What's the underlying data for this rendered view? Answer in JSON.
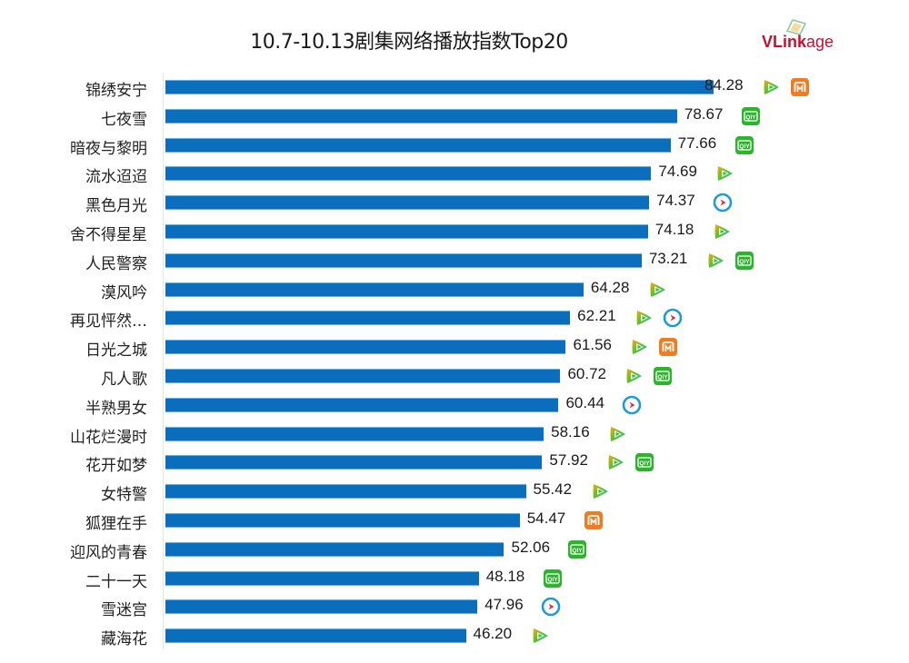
{
  "header": {
    "title": "10.7-10.13剧集网络播放指数Top20",
    "logo": {
      "text_v": "VL",
      "text_ink": "ink",
      "text_age": "age",
      "full": "VLinkage"
    }
  },
  "colors": {
    "bar": "#0a6ebd",
    "bar_edge": "#5fb2e6",
    "tencent_video": [
      "#f5a623",
      "#2ab7ec",
      "#58c322"
    ],
    "iqiyi": "#2bb52b",
    "mango_tv": "#f07c22",
    "youku": "#1e9bd7"
  },
  "icons_legend": {
    "tencent-video-icon": "腾讯视频",
    "iqiyi-icon": "爱奇艺",
    "mango-tv-icon": "芒果TV",
    "youku-icon": "优酷"
  },
  "chart_data": {
    "type": "bar",
    "orientation": "horizontal",
    "title": "10.7-10.13剧集网络播放指数Top20",
    "xlabel": "",
    "ylabel": "",
    "grid": false,
    "legend": null,
    "xlim": [
      0,
      90
    ],
    "categories": [
      "锦绣安宁",
      "七夜雪",
      "暗夜与黎明",
      "流水迢迢",
      "黑色月光",
      "舍不得星星",
      "人民警察",
      "漠风吟",
      "再见怦然…",
      "日光之城",
      "凡人歌",
      "半熟男女",
      "山花烂漫时",
      "花开如梦",
      "女特警",
      "狐狸在手",
      "迎风的青春",
      "二十一天",
      "雪迷宫",
      "藏海花"
    ],
    "values": [
      84.28,
      78.67,
      77.66,
      74.69,
      74.37,
      74.18,
      73.21,
      64.28,
      62.21,
      61.56,
      60.72,
      60.44,
      58.16,
      57.92,
      55.42,
      54.47,
      52.06,
      48.18,
      47.96,
      46.2
    ],
    "value_labels": [
      "84.28",
      "78.67",
      "77.66",
      "74.69",
      "74.37",
      "74.18",
      "73.21",
      "64.28",
      "62.21",
      "61.56",
      "60.72",
      "60.44",
      "58.16",
      "57.92",
      "55.42",
      "54.47",
      "52.06",
      "48.18",
      "47.96",
      "46.20"
    ],
    "platforms": [
      [
        "tencent",
        "mango"
      ],
      [
        "iqiyi"
      ],
      [
        "iqiyi"
      ],
      [
        "tencent"
      ],
      [
        "youku"
      ],
      [
        "tencent"
      ],
      [
        "tencent",
        "iqiyi"
      ],
      [
        "tencent"
      ],
      [
        "tencent",
        "youku"
      ],
      [
        "tencent",
        "mango"
      ],
      [
        "tencent",
        "iqiyi"
      ],
      [
        "youku"
      ],
      [
        "tencent"
      ],
      [
        "tencent",
        "iqiyi"
      ],
      [
        "tencent"
      ],
      [
        "mango"
      ],
      [
        "iqiyi"
      ],
      [
        "iqiyi"
      ],
      [
        "youku"
      ],
      [
        "tencent"
      ]
    ]
  }
}
